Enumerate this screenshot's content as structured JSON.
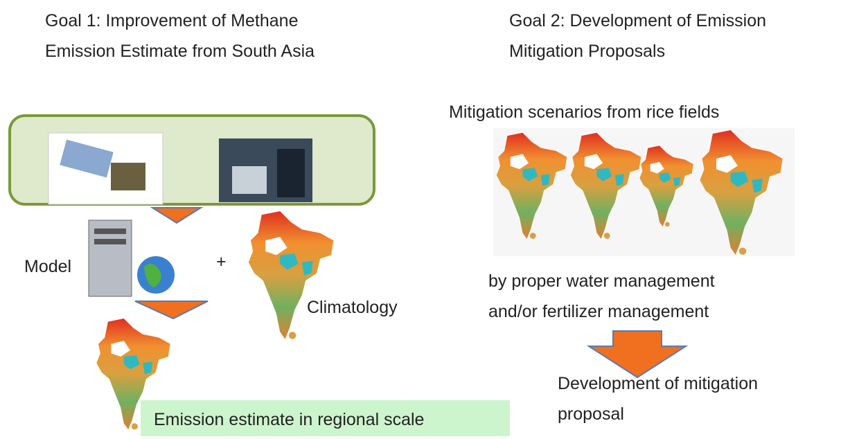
{
  "goal1": {
    "title_lines": [
      "Goal 1: Improvement of Methane",
      "Emission Estimate from South Asia"
    ],
    "model_label": "Model",
    "plus": "+",
    "climatology_label": "Climatology",
    "result_label": "Emission estimate in regional scale"
  },
  "goal2": {
    "title_lines": [
      "Goal 2: Development of  Emission",
      "Mitigation Proposals"
    ],
    "scenarios_label": "Mitigation scenarios from rice fields",
    "method_lines": [
      "by proper  water management",
      "and/or fertilizer management"
    ],
    "outcome_lines": [
      "Development of mitigation",
      "proposal"
    ]
  }
}
